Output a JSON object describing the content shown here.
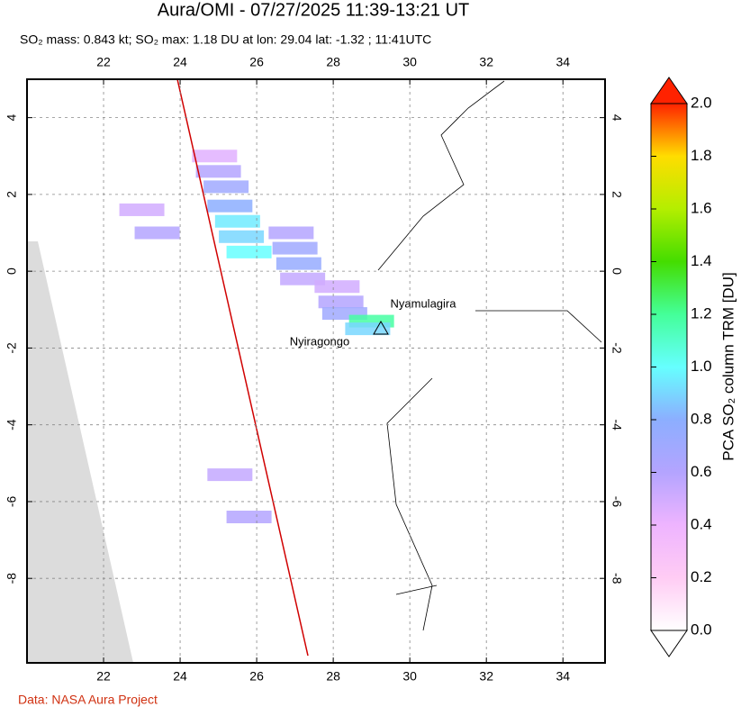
{
  "chart_data": {
    "type": "map",
    "title": "Aura/OMI - 07/27/2025 11:39-13:21 UT",
    "subtitle": "SO₂ mass: 0.843 kt; SO₂ max: 1.18 DU at lon: 29.04 lat: -1.32 ; 11:41UTC",
    "xlim": [
      20,
      35.1
    ],
    "ylim": [
      -10.2,
      5
    ],
    "xticks": [
      22,
      24,
      26,
      28,
      30,
      32,
      34
    ],
    "yticks": [
      4,
      2,
      0,
      -2,
      -4,
      -6,
      -8
    ],
    "grid": true,
    "plume": {
      "lon": [
        24.9,
        25.0,
        25.2,
        25.3,
        25.5,
        25.6,
        25.8,
        26.9,
        27.0,
        27.1,
        27.2,
        28.1,
        28.2,
        28.3,
        29.0,
        28.9,
        23.0,
        23.4,
        25.3,
        25.8
      ],
      "lat": [
        3.0,
        2.6,
        2.2,
        1.7,
        1.3,
        0.9,
        0.5,
        1.0,
        0.6,
        0.2,
        -0.2,
        -0.4,
        -0.8,
        -1.1,
        -1.3,
        -1.5,
        1.6,
        1.0,
        -5.3,
        -6.4
      ],
      "values": [
        0.45,
        0.6,
        0.7,
        0.8,
        0.95,
        0.9,
        1.0,
        0.6,
        0.7,
        0.75,
        0.55,
        0.5,
        0.6,
        0.7,
        1.18,
        0.9,
        0.5,
        0.6,
        0.55,
        0.6
      ]
    },
    "annotations": [
      "Nyamulagira",
      "Nyiragongo"
    ],
    "colorbar": {
      "label": "PCA SO₂ column TRM [DU]",
      "clim": [
        0,
        2
      ],
      "colorscale": [
        "#ffffff",
        "#ffccf4",
        "#eeb4ff",
        "#b4a4ff",
        "#8caeff",
        "#66ffff",
        "#44ff99",
        "#44dd00",
        "#b4ee00",
        "#ffdd00",
        "#ff2200"
      ],
      "ticks": [
        {
          "value": 0,
          "label": "0.0"
        },
        0.2,
        0.4,
        0.6,
        0.8,
        {
          "value": 1,
          "label": "1.0"
        },
        1.2,
        1.4,
        1.6,
        1.8,
        {
          "value": 2,
          "label": "2.0"
        }
      ]
    },
    "footer": "Data: NASA Aura Project"
  }
}
